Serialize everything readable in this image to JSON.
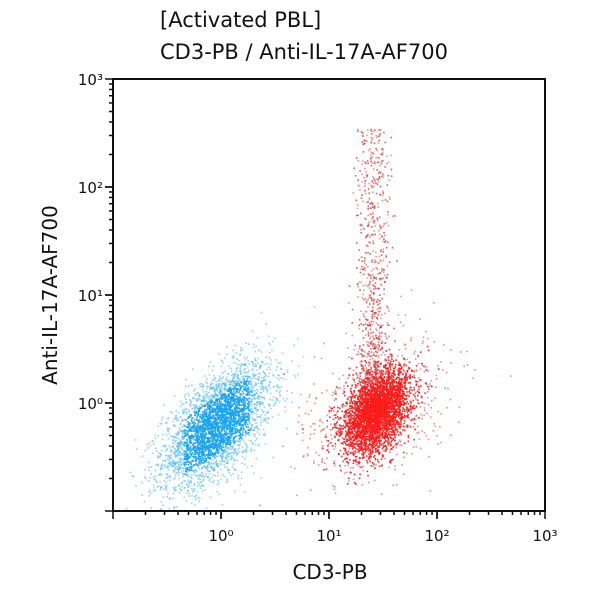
{
  "chart_data": {
    "type": "scatter",
    "title": "[Activated PBL]",
    "subtitle": "CD3-PB / Anti-IL-17A-AF700",
    "xlabel": "CD3-PB",
    "ylabel": "Anti-IL-17A-AF700",
    "xscale": "log",
    "yscale": "log",
    "xlim": [
      0.1,
      1000
    ],
    "ylim": [
      0.1,
      1000
    ],
    "xticks": [
      {
        "value": 1,
        "label": "10⁰"
      },
      {
        "value": 10,
        "label": "10¹"
      },
      {
        "value": 100,
        "label": "10²"
      },
      {
        "value": 1000,
        "label": "10³"
      }
    ],
    "yticks": [
      {
        "value": 1,
        "label": "10⁰"
      },
      {
        "value": 10,
        "label": "10¹"
      },
      {
        "value": 100,
        "label": "10²"
      },
      {
        "value": 1000,
        "label": "10³"
      }
    ],
    "grid": false,
    "populations": [
      {
        "color": "#1aa3f0",
        "x_center": 0.9,
        "y_center": 0.63,
        "x_spread_decades": 0.25,
        "y_spread_decades": 0.28
      },
      {
        "color": "#ff1a1a",
        "x_center": 27,
        "y_center": 0.85,
        "x_spread_decades": 0.15,
        "y_spread_decades": 0.2
      },
      {
        "color": "#d42a2a",
        "x_center": 25,
        "y_range": [
          1.5,
          350
        ],
        "x_spread_decades": 0.08
      }
    ]
  }
}
